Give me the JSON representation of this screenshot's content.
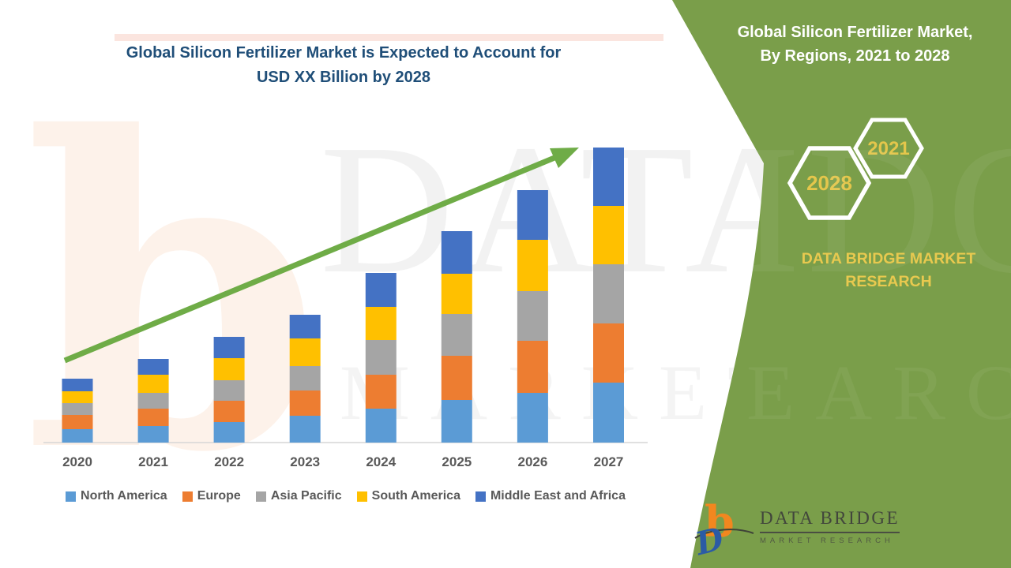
{
  "main_title": {
    "line1": "Global Silicon Fertilizer Market is Expected to Account for",
    "line2": "USD XX Billion by 2028"
  },
  "side_panel": {
    "title_line1": "Global Silicon Fertilizer Market,",
    "title_line2": "By Regions, 2021 to 2028",
    "hexagons": {
      "front_year": "2028",
      "back_year": "2021"
    },
    "brand_line1": "DATA BRIDGE MARKET",
    "brand_line2": "RESEARCH",
    "background_color": "#7A9E4A",
    "gold_color": "#E4C64B",
    "hexagon_stroke_color": "#FFFFFF"
  },
  "footer_logo": {
    "name": "DATA BRIDGE",
    "subtitle": "MARKET RESEARCH"
  },
  "watermark": {
    "letter": "b",
    "big_text": "DATA BRIDGE",
    "big_text_on_green": "IDGE",
    "outline_text": "MARKET RESEARCH",
    "outline_text_on_green": "EARCH"
  },
  "chart_data": {
    "type": "bar",
    "stacked": true,
    "title": "Global Silicon Fertilizer Market is Expected to Account for USD XX Billion by 2028",
    "categories": [
      "2020",
      "2021",
      "2022",
      "2023",
      "2024",
      "2025",
      "2026",
      "2027"
    ],
    "series": [
      {
        "name": "North America",
        "color": "#5B9BD5",
        "values": [
          17,
          21,
          26,
          34,
          43,
          54,
          63,
          76
        ]
      },
      {
        "name": "Europe",
        "color": "#ED7D31",
        "values": [
          18,
          22,
          27,
          32,
          43,
          56,
          66,
          75
        ]
      },
      {
        "name": "Asia Pacific",
        "color": "#A5A5A5",
        "values": [
          15,
          20,
          26,
          31,
          44,
          53,
          63,
          75
        ]
      },
      {
        "name": "South America",
        "color": "#FFC000",
        "values": [
          15,
          23,
          28,
          35,
          42,
          51,
          65,
          74
        ]
      },
      {
        "name": "Middle East and Africa",
        "color": "#4472C4",
        "values": [
          16,
          20,
          27,
          30,
          43,
          54,
          63,
          74
        ]
      }
    ],
    "stack_totals": [
      81,
      106,
      134,
      162,
      215,
      268,
      320,
      374
    ],
    "xlabel": "",
    "ylabel": "",
    "value_units": "relative units (y-axis unlabeled; market sized as USD XX Billion)",
    "ylim": [
      0,
      400
    ],
    "grid": false,
    "legend_position": "bottom",
    "trend_arrow": true,
    "trend_arrow_color": "#6FAC47",
    "axis_line_color": "#D6D6D6"
  }
}
